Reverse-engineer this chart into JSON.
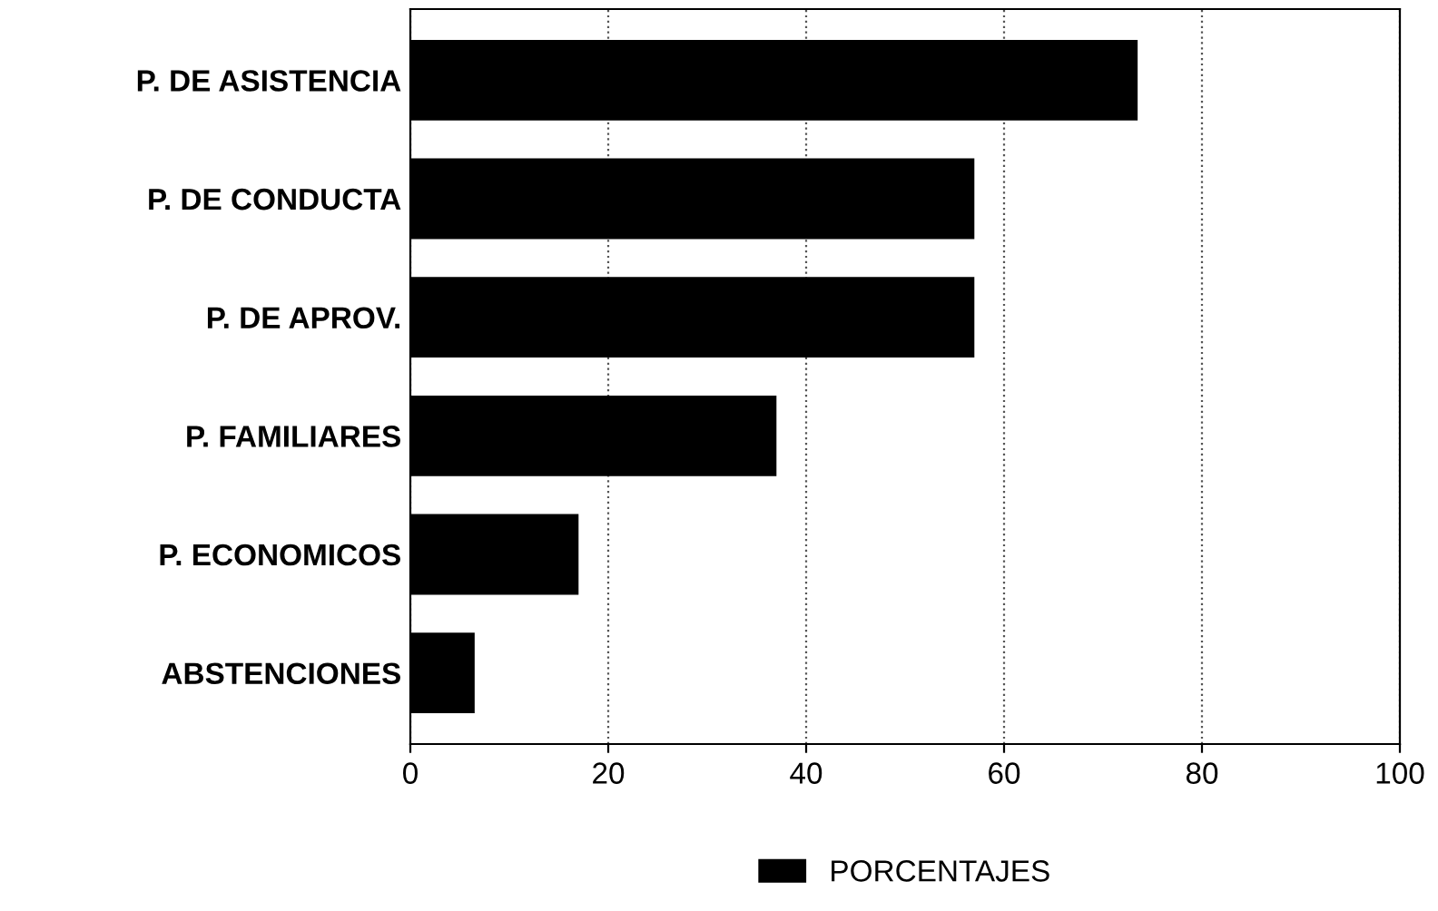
{
  "chart_data": {
    "type": "bar",
    "orientation": "horizontal",
    "categories": [
      "P. DE ASISTENCIA",
      "P. DE CONDUCTA",
      "P. DE APROV.",
      "P. FAMILIARES",
      "P. ECONOMICOS",
      "ABSTENCIONES"
    ],
    "series": [
      {
        "name": "PORCENTAJES",
        "color": "#000000",
        "values": [
          73.5,
          57,
          57,
          37,
          17,
          6.5
        ]
      }
    ],
    "xlim": [
      0,
      100
    ],
    "xticks": [
      0,
      20,
      40,
      60,
      80,
      100
    ],
    "grid": "x",
    "legend": "bottom"
  }
}
